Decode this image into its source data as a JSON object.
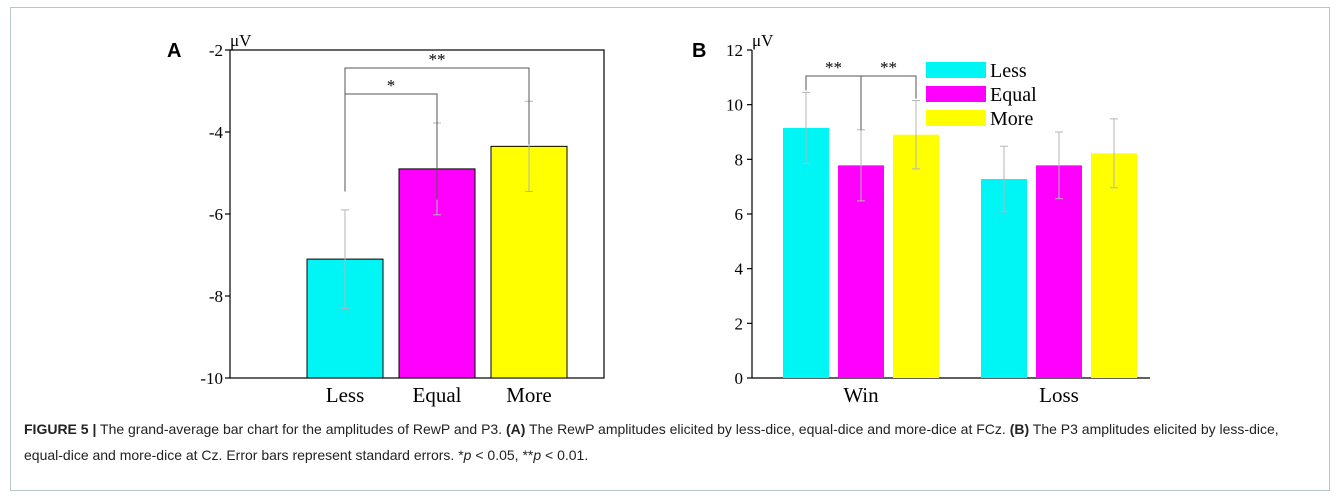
{
  "panels": {
    "a": {
      "letter": "A",
      "unit": "μV"
    },
    "b": {
      "letter": "B",
      "unit": "μV"
    }
  },
  "caption": {
    "label": "FIGURE 5 |",
    "text1": " The grand-average bar chart for the amplitudes of RewP and P3. ",
    "ref_a": "(A)",
    "text2": " The RewP amplitudes elicited by less-dice, equal-dice and more-dice at FCz. ",
    "ref_b": "(B)",
    "text3": " The P3 amplitudes elicited by less-dice, equal-dice and more-dice at Cz. Error bars represent standard errors. ",
    "sig1_mark": "*",
    "sig1_p": "p",
    "sig1_rest": " < 0.05, ",
    "sig2_mark": "**",
    "sig2_p": "p",
    "sig2_rest": " < 0.01."
  },
  "chart_data": [
    {
      "type": "bar",
      "panel": "A",
      "categories": [
        "Less",
        "Equal",
        "More"
      ],
      "values": [
        -7.1,
        -4.9,
        -4.35
      ],
      "errors": [
        1.2,
        1.12,
        1.1
      ],
      "colors": [
        "#00f5f5",
        "#ff00ff",
        "#ffff00"
      ],
      "ylim": [
        -10,
        -2
      ],
      "yticks": [
        -2,
        -4,
        -6,
        -8,
        -10
      ],
      "ylabel": "μV",
      "significance": [
        {
          "from": "Less",
          "to": "Equal",
          "label": "*"
        },
        {
          "from": "Less",
          "to": "More",
          "label": "**"
        }
      ]
    },
    {
      "type": "bar",
      "panel": "B",
      "categories": [
        "Win",
        "Loss"
      ],
      "series": [
        {
          "name": "Less",
          "color": "#00f5f5",
          "values": [
            9.15,
            7.28
          ],
          "errors": [
            1.3,
            1.2
          ]
        },
        {
          "name": "Equal",
          "color": "#ff00ff",
          "values": [
            7.78,
            7.78
          ],
          "errors": [
            1.3,
            1.22
          ]
        },
        {
          "name": "More",
          "color": "#ffff00",
          "values": [
            8.9,
            8.22
          ],
          "errors": [
            1.25,
            1.26
          ]
        }
      ],
      "ylim": [
        0,
        12
      ],
      "yticks": [
        0,
        2,
        4,
        6,
        8,
        10,
        12
      ],
      "ylabel": "μV",
      "legend": "top-right",
      "significance": [
        {
          "group": "Win",
          "from": "Less",
          "to": "Equal",
          "label": "**"
        },
        {
          "group": "Win",
          "from": "Equal",
          "to": "More",
          "label": "**"
        }
      ]
    }
  ]
}
